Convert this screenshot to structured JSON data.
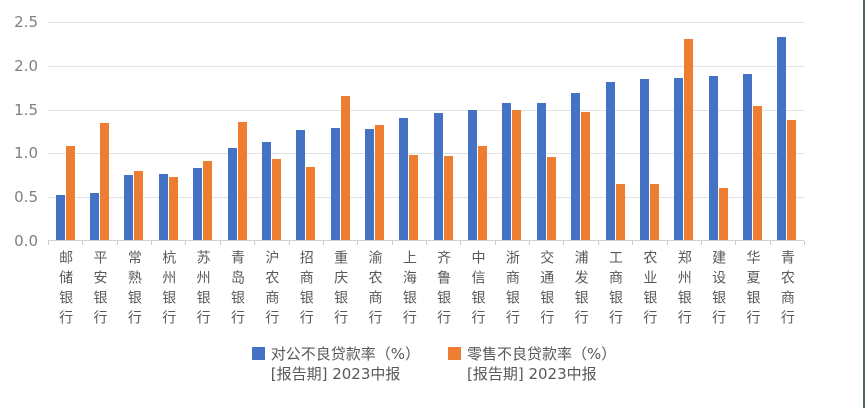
{
  "chart_data": {
    "type": "bar",
    "title": "",
    "xlabel": "",
    "ylabel": "",
    "ylim": [
      0,
      2.5
    ],
    "y_ticks": [
      "0.0",
      "0.5",
      "1.0",
      "1.5",
      "2.0",
      "2.5"
    ],
    "grid": true,
    "legend_position": "bottom",
    "categories": [
      "邮储银行",
      "平安银行",
      "常熟银行",
      "杭州银行",
      "苏州银行",
      "青岛银行",
      "沪农商行",
      "招商银行",
      "重庆银行",
      "渝农商行",
      "上海银行",
      "齐鲁银行",
      "中信银行",
      "浙商银行",
      "交通银行",
      "浦发银行",
      "工商银行",
      "农业银行",
      "郑州银行",
      "建设银行",
      "华夏银行",
      "青农商行"
    ],
    "series": [
      {
        "name": "对公不良贷款率（%）[报告期] 2023中报",
        "color": "#4472C4",
        "values": [
          0.53,
          0.55,
          0.75,
          0.77,
          0.83,
          1.06,
          1.13,
          1.27,
          1.29,
          1.28,
          1.4,
          1.46,
          1.49,
          1.58,
          1.58,
          1.69,
          1.82,
          1.85,
          1.86,
          1.88,
          1.91,
          2.33
        ]
      },
      {
        "name": "零售不良贷款率（%）[报告期] 2023中报",
        "color": "#ED7D31",
        "values": [
          1.09,
          1.35,
          0.8,
          0.73,
          0.91,
          1.36,
          0.94,
          0.84,
          1.65,
          1.33,
          0.98,
          0.97,
          1.08,
          1.49,
          0.96,
          1.47,
          0.65,
          0.65,
          2.31,
          0.61,
          1.54,
          1.38
        ]
      }
    ]
  },
  "legend": {
    "items": [
      {
        "line1": "对公不良贷款率（%）",
        "line2": "[报告期] 2023中报"
      },
      {
        "line1": "零售不良贷款率（%）",
        "line2": "[报告期] 2023中报"
      }
    ]
  },
  "colors": {
    "series_corporate": "#4472C4",
    "series_retail": "#ED7D31",
    "gridline": "#E2E2E2",
    "axis_text": "#7F7F7F",
    "label_text": "#595959",
    "edge_line": "#4B6A55"
  }
}
